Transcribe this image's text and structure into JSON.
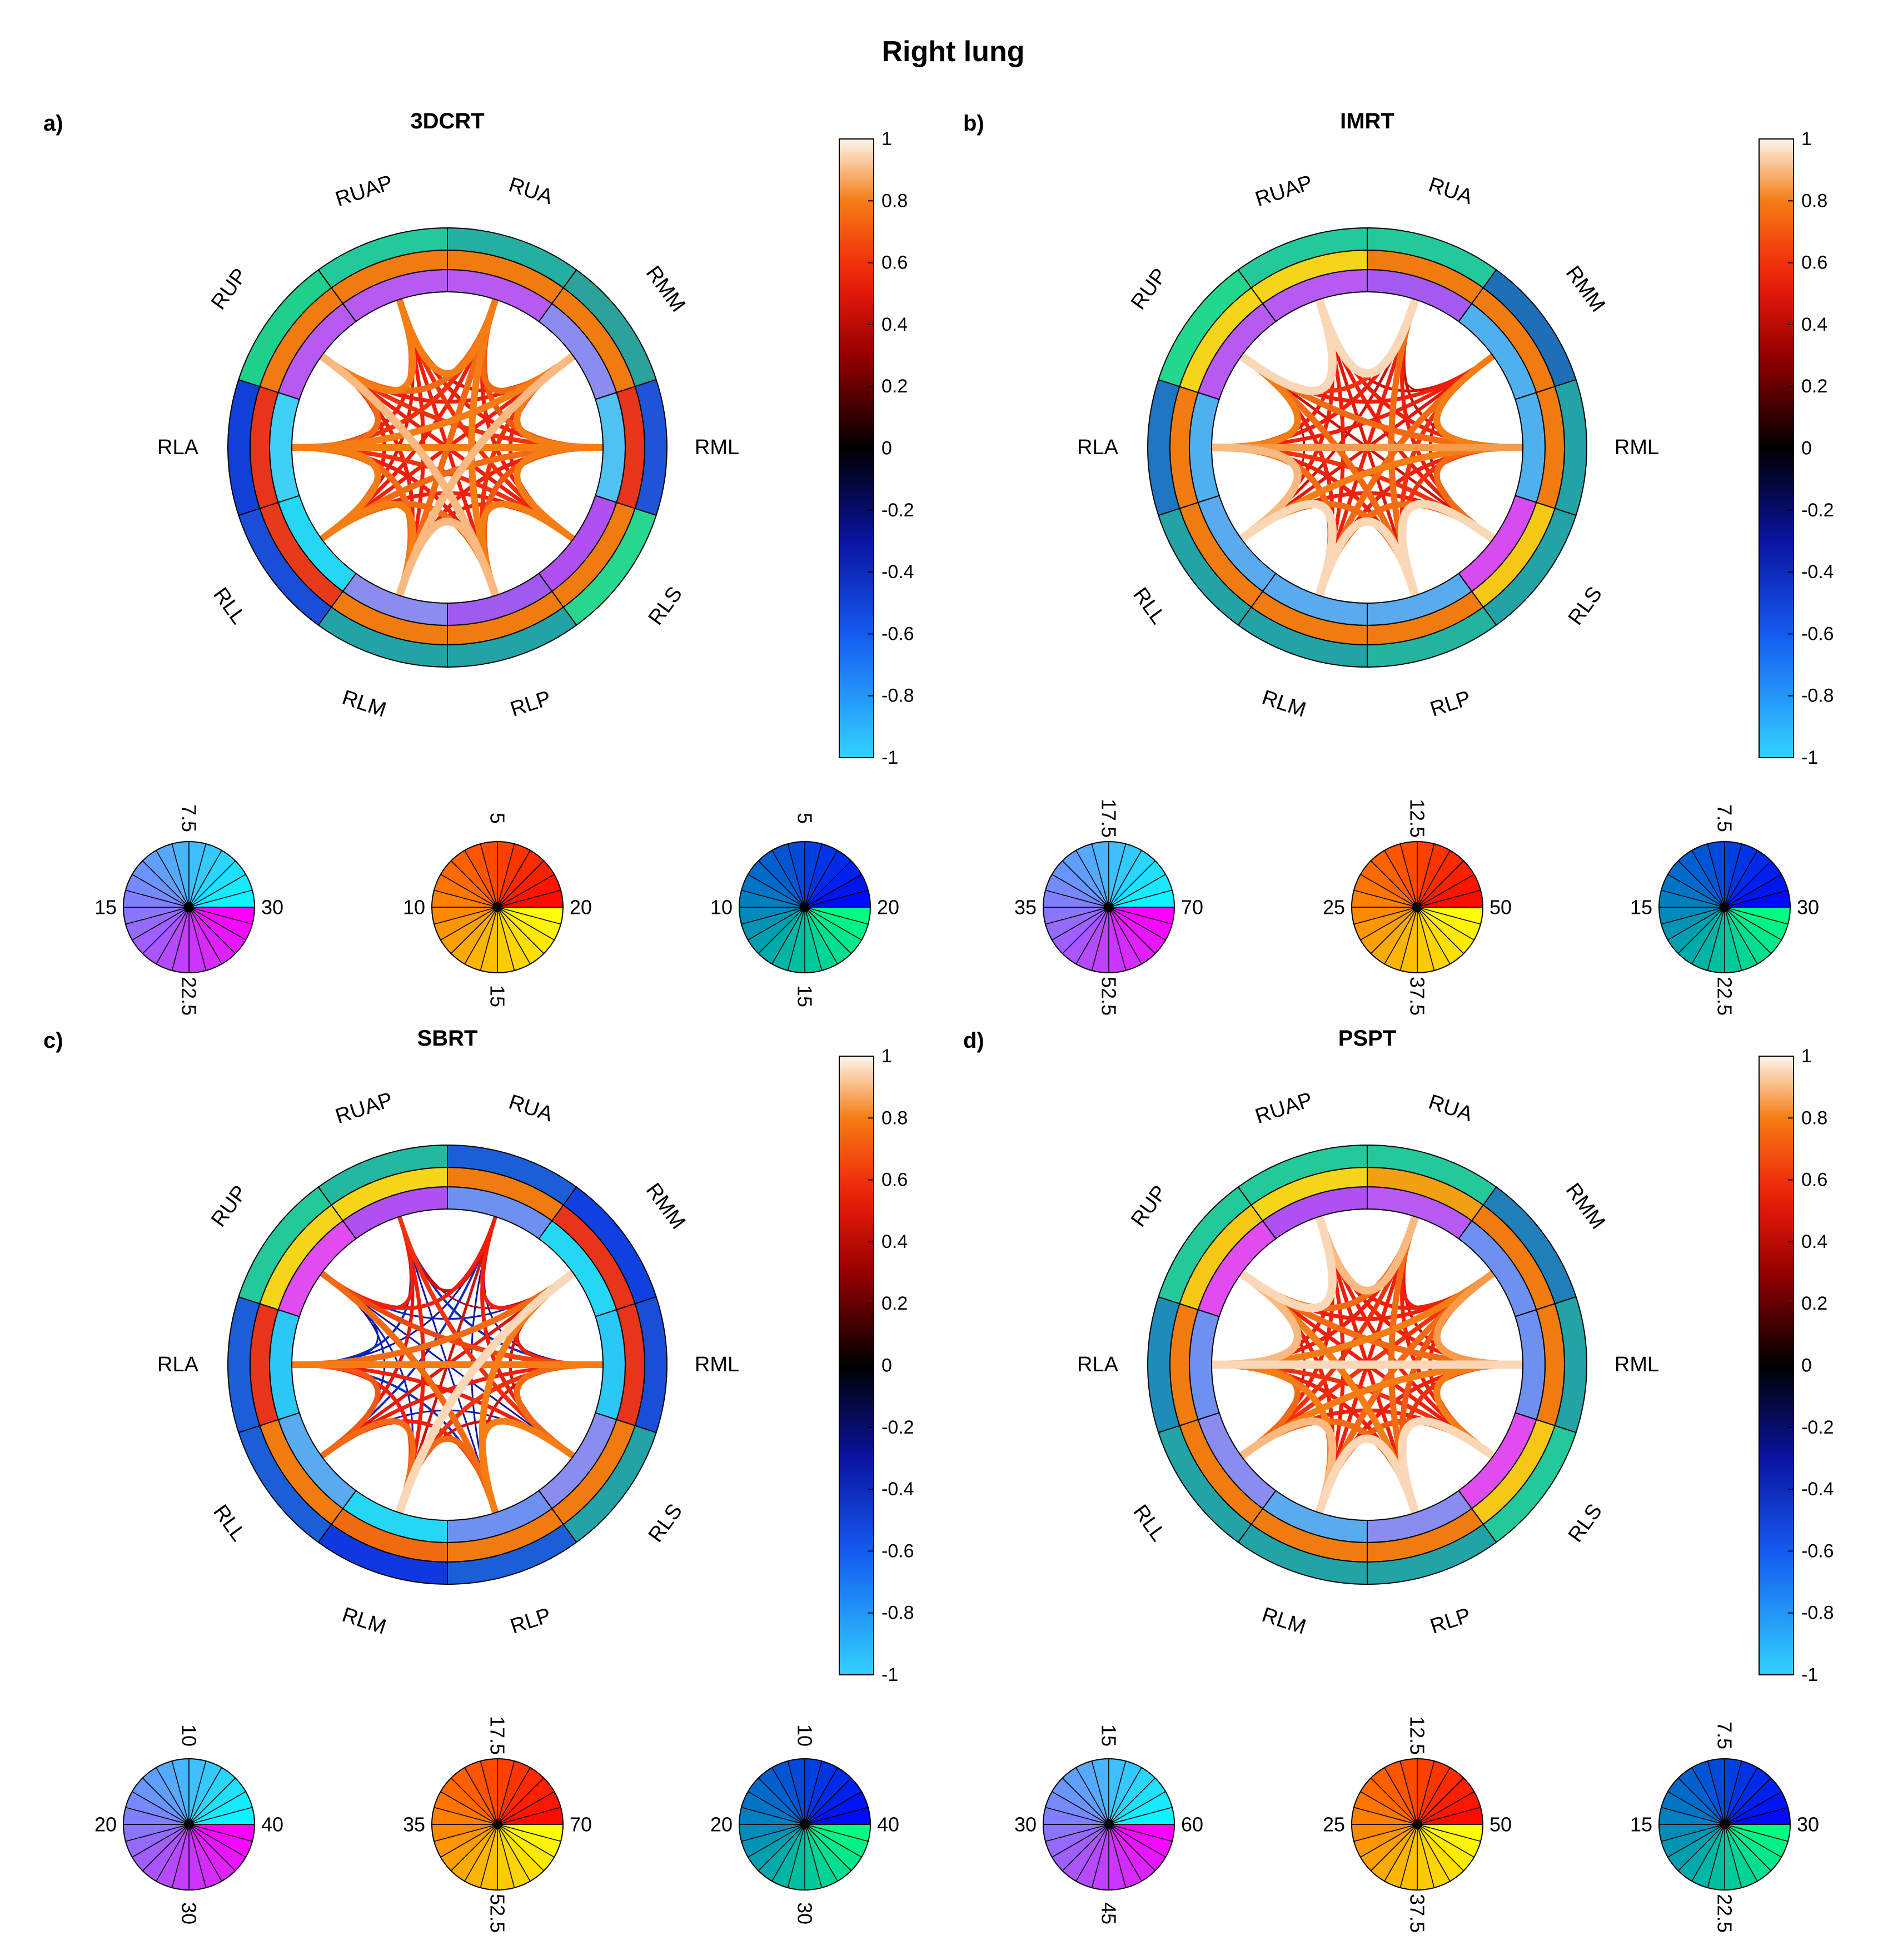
{
  "figure_title": "Right lung",
  "colors": {
    "wedge_ring1": [
      "#23cc99",
      "#f07c10",
      "#22a5a8",
      "#0b63cc",
      "#1a4ed8",
      "#22d88e",
      "#2d9e9c",
      "#0b3fe0"
    ],
    "wedge_ring2": [
      "#f07c10",
      "#f07c10",
      "#f07c10",
      "#f07c10",
      "#e63a1a",
      "#f07c10",
      "#ef8f12",
      "#f07c10"
    ],
    "wedge_ring3": [
      "#b050f0",
      "#b050f0",
      "#7e8cf0",
      "#4fc0f0",
      "#22d8f5",
      "#a05af0",
      "#7e8cf0",
      "#b050f0"
    ]
  },
  "colorbar": {
    "ticks": [
      "1",
      "0.8",
      "0.6",
      "0.4",
      "0.2",
      "0",
      "-0.2",
      "-0.4",
      "-0.6",
      "-0.8",
      "-1"
    ],
    "range": [
      -1,
      1
    ]
  },
  "chart_data": [
    {
      "type": "chord",
      "panel_label": "a)",
      "title": "3DCRT",
      "nodes": [
        "RUA",
        "RMM",
        "RML",
        "RLS",
        "RLP",
        "RLM",
        "RLL",
        "RLA",
        "RUP",
        "RUAP"
      ],
      "ring_outer": [
        "#23b0a0",
        "#2ba39b",
        "#1e55d8",
        "#27d68f",
        "#22a3a6",
        "#22a3a6",
        "#1a4ed8",
        "#1040d8",
        "#1fcf8c",
        "#23c99a"
      ],
      "ring_middle": [
        "#f07c10",
        "#f07c10",
        "#e8341a",
        "#f07c10",
        "#f07c10",
        "#f07c10",
        "#e63a1a",
        "#e8341a",
        "#f07c10",
        "#f07c10"
      ],
      "ring_inner": [
        "#b65af2",
        "#8b8cf0",
        "#4fc2f2",
        "#b050f0",
        "#a05af0",
        "#8a8cf0",
        "#24d8f5",
        "#3fd0f5",
        "#b65af2",
        "#b65af2"
      ],
      "correlation": [
        [
          1,
          0.75,
          0.7,
          0.55,
          0.8,
          0.75,
          0.55,
          0.6,
          0.75,
          0.8
        ],
        [
          0.75,
          1,
          0.8,
          0.55,
          0.6,
          0.9,
          0.55,
          0.8,
          0.55,
          0.5
        ],
        [
          0.7,
          0.8,
          1,
          0.8,
          0.7,
          0.55,
          0.75,
          0.8,
          0.6,
          0.55
        ],
        [
          0.55,
          0.55,
          0.8,
          1,
          0.8,
          0.55,
          0.55,
          0.6,
          0.55,
          0.6
        ],
        [
          0.8,
          0.6,
          0.7,
          0.8,
          1,
          0.9,
          0.75,
          0.55,
          0.9,
          0.55
        ],
        [
          0.75,
          0.9,
          0.55,
          0.55,
          0.9,
          1,
          0.8,
          0.75,
          0.55,
          0.55
        ],
        [
          0.55,
          0.55,
          0.75,
          0.55,
          0.75,
          0.8,
          1,
          0.8,
          0.55,
          0.5
        ],
        [
          0.6,
          0.8,
          0.8,
          0.6,
          0.55,
          0.75,
          0.8,
          1,
          0.75,
          0.55
        ],
        [
          0.75,
          0.55,
          0.6,
          0.55,
          0.9,
          0.55,
          0.55,
          0.75,
          1,
          0.8
        ],
        [
          0.8,
          0.5,
          0.55,
          0.6,
          0.55,
          0.55,
          0.5,
          0.55,
          0.8,
          1
        ]
      ],
      "wheels": [
        {
          "cmap": "cool",
          "top": "7.5",
          "left": "15",
          "right": "30",
          "bottom": "22.5"
        },
        {
          "cmap": "autumn",
          "top": "5",
          "left": "10",
          "right": "20",
          "bottom": "15"
        },
        {
          "cmap": "winter",
          "top": "5",
          "left": "10",
          "right": "20",
          "bottom": "15"
        }
      ]
    },
    {
      "type": "chord",
      "panel_label": "b)",
      "title": "IMRT",
      "nodes": [
        "RUA",
        "RMM",
        "RML",
        "RLS",
        "RLP",
        "RLM",
        "RLL",
        "RLA",
        "RUP",
        "RUAP"
      ],
      "ring_outer": [
        "#23c99a",
        "#1f6fb8",
        "#22a3a6",
        "#22a3a6",
        "#23b49d",
        "#22a3a6",
        "#22a3a6",
        "#1e76c2",
        "#22d88e",
        "#23c99a"
      ],
      "ring_middle": [
        "#f07c10",
        "#f07c10",
        "#f07c10",
        "#f5c816",
        "#f07c10",
        "#f07c10",
        "#f07c10",
        "#f07c10",
        "#f5d51a",
        "#f5d51a"
      ],
      "ring_inner": [
        "#a45af0",
        "#4fb0f0",
        "#4fb0f0",
        "#d64cf0",
        "#5aaaf0",
        "#5aaaf0",
        "#5aaaf0",
        "#4fb0f0",
        "#b65af2",
        "#b65af2"
      ],
      "correlation": [
        [
          1,
          0.35,
          0.45,
          0.55,
          0.75,
          0.55,
          0.45,
          0.55,
          0.6,
          0.95
        ],
        [
          0.35,
          1,
          0.8,
          0.45,
          0.6,
          0.75,
          0.5,
          0.55,
          0.55,
          0.45
        ],
        [
          0.45,
          0.8,
          1,
          0.75,
          0.6,
          0.55,
          0.8,
          0.85,
          0.75,
          0.55
        ],
        [
          0.55,
          0.45,
          0.75,
          1,
          0.95,
          0.75,
          0.55,
          0.6,
          0.45,
          0.55
        ],
        [
          0.75,
          0.6,
          0.6,
          0.95,
          1,
          0.95,
          0.75,
          0.55,
          0.75,
          0.5
        ],
        [
          0.55,
          0.75,
          0.55,
          0.75,
          0.95,
          1,
          0.95,
          0.75,
          0.55,
          0.55
        ],
        [
          0.45,
          0.5,
          0.8,
          0.55,
          0.75,
          0.95,
          1,
          0.9,
          0.35,
          0.55
        ],
        [
          0.55,
          0.55,
          0.85,
          0.6,
          0.55,
          0.75,
          0.9,
          1,
          0.8,
          0.55
        ],
        [
          0.6,
          0.55,
          0.75,
          0.45,
          0.75,
          0.55,
          0.35,
          0.8,
          1,
          0.95
        ],
        [
          0.95,
          0.45,
          0.55,
          0.55,
          0.5,
          0.55,
          0.55,
          0.55,
          0.95,
          1
        ]
      ],
      "wheels": [
        {
          "cmap": "cool",
          "top": "17.5",
          "left": "35",
          "right": "70",
          "bottom": "52.5"
        },
        {
          "cmap": "autumn",
          "top": "12.5",
          "left": "25",
          "right": "50",
          "bottom": "37.5"
        },
        {
          "cmap": "winter",
          "top": "7.5",
          "left": "15",
          "right": "30",
          "bottom": "22.5"
        }
      ]
    },
    {
      "type": "chord",
      "panel_label": "c)",
      "title": "SBRT",
      "nodes": [
        "RUA",
        "RMM",
        "RML",
        "RLS",
        "RLP",
        "RLM",
        "RLL",
        "RLA",
        "RUP",
        "RUAP"
      ],
      "ring_outer": [
        "#1a5ed8",
        "#1040e0",
        "#1a4ed8",
        "#22a3a6",
        "#1a5ed8",
        "#1038e0",
        "#1a5ed8",
        "#1a5ed8",
        "#22c99a",
        "#23b9a0"
      ],
      "ring_middle": [
        "#f07c10",
        "#e8341a",
        "#e8341a",
        "#f07c10",
        "#f07c10",
        "#f06a10",
        "#f07c10",
        "#e8341a",
        "#f5d51a",
        "#f5d51a"
      ],
      "ring_inner": [
        "#6e90f0",
        "#24d8f5",
        "#2cc8f5",
        "#8a8cf0",
        "#6e90f0",
        "#24d8f5",
        "#5aaaf0",
        "#2cc8f5",
        "#e04cf0",
        "#b050f0"
      ],
      "correlation": [
        [
          1,
          0.55,
          -0.3,
          0.55,
          -0.3,
          0.45,
          -0.4,
          -0.3,
          0.55,
          0.45
        ],
        [
          0.55,
          1,
          0.55,
          0.45,
          0.8,
          0.95,
          0.5,
          0.75,
          -0.35,
          0.35
        ],
        [
          -0.3,
          0.55,
          1,
          0.75,
          0.45,
          0.6,
          0.55,
          0.8,
          0.65,
          -0.4
        ],
        [
          0.55,
          0.45,
          0.75,
          1,
          0.8,
          0.45,
          -0.35,
          0.55,
          -0.3,
          0.6
        ],
        [
          -0.3,
          0.8,
          0.45,
          0.8,
          1,
          0.75,
          0.55,
          -0.4,
          0.75,
          -0.3
        ],
        [
          0.45,
          0.95,
          0.6,
          0.45,
          0.75,
          1,
          0.75,
          0.55,
          -0.35,
          0.55
        ],
        [
          -0.4,
          0.5,
          0.55,
          -0.35,
          0.55,
          0.75,
          1,
          0.7,
          -0.3,
          0.5
        ],
        [
          -0.3,
          0.75,
          0.8,
          0.55,
          -0.4,
          0.55,
          0.7,
          1,
          -0.35,
          -0.4
        ],
        [
          0.55,
          -0.35,
          0.65,
          -0.3,
          0.75,
          -0.35,
          -0.3,
          -0.35,
          1,
          0.55
        ],
        [
          0.45,
          0.35,
          -0.4,
          0.6,
          -0.3,
          0.55,
          0.5,
          -0.4,
          0.55,
          1
        ]
      ],
      "wheels": [
        {
          "cmap": "cool",
          "top": "10",
          "left": "20",
          "right": "40",
          "bottom": "30"
        },
        {
          "cmap": "autumn",
          "top": "17.5",
          "left": "35",
          "right": "70",
          "bottom": "52.5"
        },
        {
          "cmap": "winter",
          "top": "10",
          "left": "20",
          "right": "40",
          "bottom": "30"
        }
      ]
    },
    {
      "type": "chord",
      "panel_label": "d)",
      "title": "PSPT",
      "nodes": [
        "RUA",
        "RMM",
        "RML",
        "RLS",
        "RLP",
        "RLM",
        "RLL",
        "RLA",
        "RUP",
        "RUAP"
      ],
      "ring_outer": [
        "#23c99a",
        "#1f7fb8",
        "#22a3a6",
        "#23c99a",
        "#22a3a6",
        "#22a3a6",
        "#22a3a6",
        "#1e8cb8",
        "#22c99a",
        "#23c99a"
      ],
      "ring_middle": [
        "#f0a010",
        "#f07c10",
        "#f07c10",
        "#f5c816",
        "#f07c10",
        "#f07c10",
        "#f07c10",
        "#f07c10",
        "#f5c816",
        "#f5d51a"
      ],
      "ring_inner": [
        "#b65af2",
        "#6e90f0",
        "#6e90f0",
        "#e04cf0",
        "#8a8cf0",
        "#5aaaf0",
        "#8a8cf0",
        "#6e90f0",
        "#e04cf0",
        "#b050f0"
      ],
      "correlation": [
        [
          1,
          0.55,
          0.45,
          0.55,
          0.75,
          0.55,
          0.6,
          0.55,
          0.75,
          0.9
        ],
        [
          0.55,
          1,
          0.85,
          0.55,
          0.7,
          0.75,
          0.6,
          0.8,
          0.55,
          0.55
        ],
        [
          0.45,
          0.85,
          1,
          0.8,
          0.6,
          0.55,
          0.8,
          0.95,
          0.75,
          0.55
        ],
        [
          0.55,
          0.55,
          0.8,
          1,
          0.95,
          0.7,
          0.55,
          0.6,
          0.55,
          0.55
        ],
        [
          0.75,
          0.7,
          0.6,
          0.95,
          1,
          0.95,
          0.75,
          0.55,
          0.8,
          0.55
        ],
        [
          0.55,
          0.75,
          0.55,
          0.7,
          0.95,
          1,
          0.9,
          0.8,
          0.55,
          0.55
        ],
        [
          0.6,
          0.6,
          0.8,
          0.55,
          0.75,
          0.9,
          1,
          0.75,
          0.45,
          0.55
        ],
        [
          0.55,
          0.8,
          0.95,
          0.6,
          0.55,
          0.8,
          0.75,
          1,
          0.9,
          0.55
        ],
        [
          0.75,
          0.55,
          0.75,
          0.55,
          0.8,
          0.55,
          0.45,
          0.9,
          1,
          0.95
        ],
        [
          0.9,
          0.55,
          0.55,
          0.55,
          0.55,
          0.55,
          0.55,
          0.55,
          0.95,
          1
        ]
      ],
      "wheels": [
        {
          "cmap": "cool",
          "top": "15",
          "left": "30",
          "right": "60",
          "bottom": "45"
        },
        {
          "cmap": "autumn",
          "top": "12.5",
          "left": "25",
          "right": "50",
          "bottom": "37.5"
        },
        {
          "cmap": "winter",
          "top": "7.5",
          "left": "15",
          "right": "30",
          "bottom": "22.5"
        }
      ]
    }
  ]
}
